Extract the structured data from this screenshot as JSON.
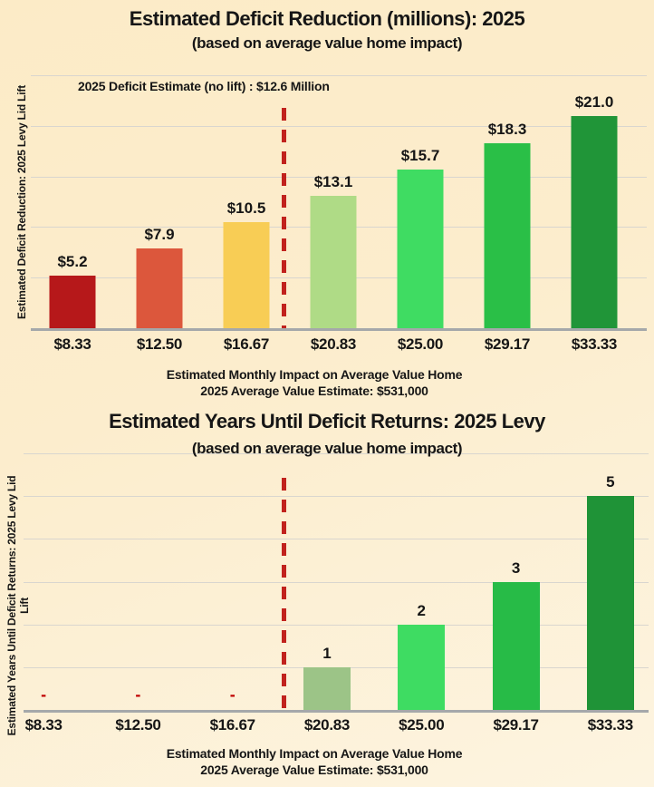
{
  "page": {
    "background_top": "#fcebc7",
    "background_bottom": "#fdf4e0",
    "text_color": "#161616",
    "gridline_color": "#d9d6cf",
    "baseline_color": "#a5a8aa"
  },
  "chart_data": [
    {
      "type": "bar",
      "title": "Estimated Deficit Reduction (millions):  2025",
      "subtitle": "(based on average value home impact)",
      "annotation": "2025 Deficit Estimate (no lift) :  $12.6 Million",
      "ylabel": [
        "Estimated Deficit Reduction:  2025 Levy Lid Lift"
      ],
      "xlabel": [
        "Estimated Monthly Impact on Average Value Home",
        "2025 Average Value Estimate:  $531,000"
      ],
      "categories": [
        "$8.33",
        "$12.50",
        "$16.67",
        "$20.83",
        "$25.00",
        "$29.17",
        "$33.33"
      ],
      "values": [
        5.2,
        7.9,
        10.5,
        13.1,
        15.7,
        18.3,
        21.0
      ],
      "value_labels": [
        "$5.2",
        "$7.9",
        "$10.5",
        "$13.1",
        "$15.7",
        "$18.3",
        "$21.0"
      ],
      "bar_colors": [
        "#b6181a",
        "#dc573c",
        "#f8cd55",
        "#afdb86",
        "#3fdc62",
        "#2abf47",
        "#209538"
      ],
      "ylim": [
        0,
        25
      ],
      "grid_step": 5,
      "grid": true,
      "legend": false,
      "divider_between": [
        "$16.67",
        "$20.83"
      ],
      "divider_color": "#c1221d",
      "zero_label": "-",
      "zero_label_color": "#c00000"
    },
    {
      "type": "bar",
      "title": "Estimated Years Until Deficit Returns:  2025 Levy",
      "subtitle": "(based on average value home impact)",
      "annotation": "",
      "ylabel": [
        "Estimated Years Until Deficit Returns:  2025 Levy Lid",
        "Lift"
      ],
      "xlabel": [
        "Estimated Monthly Impact on Average Value Home",
        "2025 Average Value Estimate:  $531,000"
      ],
      "categories": [
        "$8.33",
        "$12.50",
        "$16.67",
        "$20.83",
        "$25.00",
        "$29.17",
        "$33.33"
      ],
      "values": [
        0,
        0,
        0,
        1,
        2,
        3,
        5
      ],
      "value_labels": [
        "-",
        "-",
        "-",
        "1",
        "2",
        "3",
        "5"
      ],
      "bar_colors": [
        "#b6181a",
        "#dc573c",
        "#f8cd55",
        "#9cc487",
        "#3edc62",
        "#27bb47",
        "#1f9337"
      ],
      "ylim": [
        0,
        6
      ],
      "grid_step": 1,
      "grid": true,
      "legend": false,
      "divider_between": [
        "$16.67",
        "$20.83"
      ],
      "divider_color": "#c1221d",
      "zero_label": "-",
      "zero_label_color": "#c00000"
    }
  ]
}
